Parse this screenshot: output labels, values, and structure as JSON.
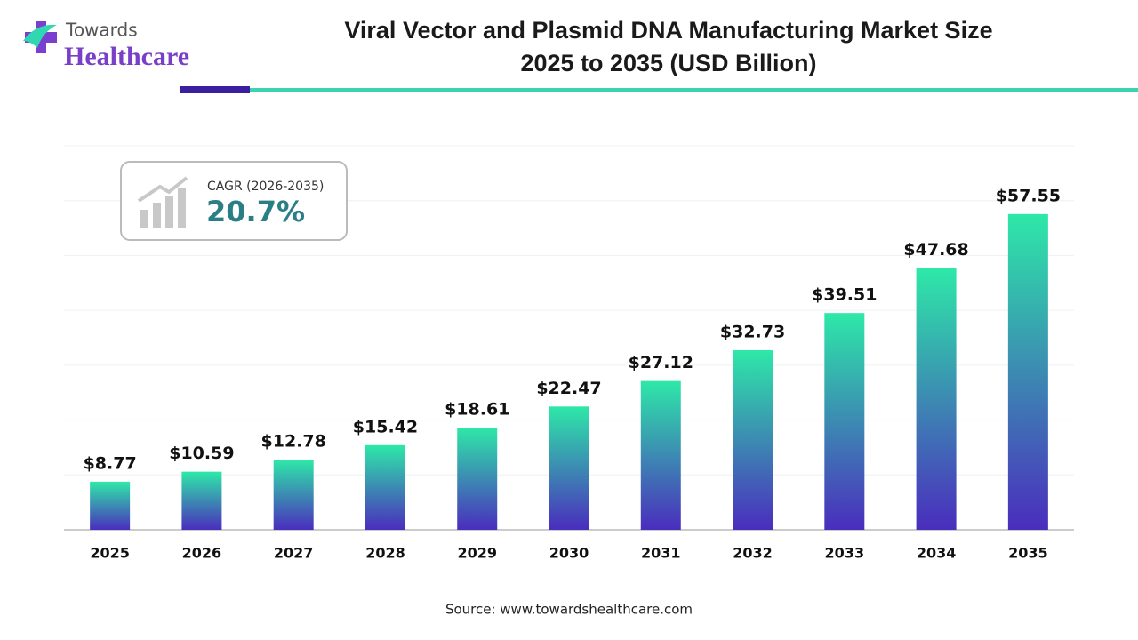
{
  "logo": {
    "line1": "Towards",
    "line2": "Healthcare"
  },
  "cagr": {
    "label": "CAGR (2026-2035)",
    "value": "20.7%"
  },
  "source": "Source: www.towardshealthcare.com",
  "chart_data": {
    "type": "bar",
    "title": [
      "Viral Vector and Plasmid DNA Manufacturing Market Size",
      "2025 to 2035 (USD Billion)"
    ],
    "categories": [
      "2025",
      "2026",
      "2027",
      "2028",
      "2029",
      "2030",
      "2031",
      "2032",
      "2033",
      "2034",
      "2035"
    ],
    "values": [
      8.77,
      10.59,
      12.78,
      15.42,
      18.61,
      22.47,
      27.12,
      32.73,
      39.51,
      47.68,
      57.55
    ],
    "value_labels": [
      "$8.77",
      "$10.59",
      "$12.78",
      "$15.42",
      "$18.61",
      "$22.47",
      "$27.12",
      "$32.73",
      "$39.51",
      "$47.68",
      "$57.55"
    ],
    "colors": [
      "#2ee8a8",
      "#4a2dbd"
    ],
    "ylim": [
      0,
      70
    ],
    "yticks": [
      0,
      10,
      20,
      30,
      40,
      50,
      60,
      70
    ],
    "grid": true
  }
}
